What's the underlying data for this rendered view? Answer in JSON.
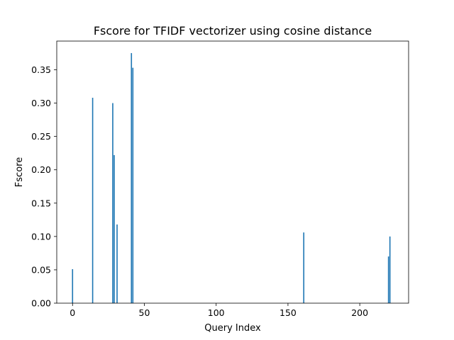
{
  "chart_data": {
    "type": "bar",
    "title": "Fscore for TFIDF vectorizer using cosine distance",
    "xlabel": "Query Index",
    "ylabel": "Fscore",
    "xlim": [
      -11,
      234
    ],
    "ylim": [
      0,
      0.393
    ],
    "xticks": [
      0,
      50,
      100,
      150,
      200
    ],
    "xtick_labels": [
      "0",
      "50",
      "100",
      "150",
      "200"
    ],
    "yticks": [
      0,
      0.05,
      0.1,
      0.15,
      0.2,
      0.25,
      0.3,
      0.35
    ],
    "ytick_labels": [
      "0.00",
      "0.05",
      "0.10",
      "0.15",
      "0.20",
      "0.25",
      "0.30",
      "0.35"
    ],
    "grid": false,
    "bar_color": "#1f77b4",
    "bar_width": 0.8,
    "x": [
      0,
      14,
      28,
      29,
      31,
      41,
      42,
      161,
      220,
      221
    ],
    "values": [
      0.051,
      0.308,
      0.3,
      0.222,
      0.118,
      0.375,
      0.353,
      0.106,
      0.07,
      0.1
    ]
  }
}
